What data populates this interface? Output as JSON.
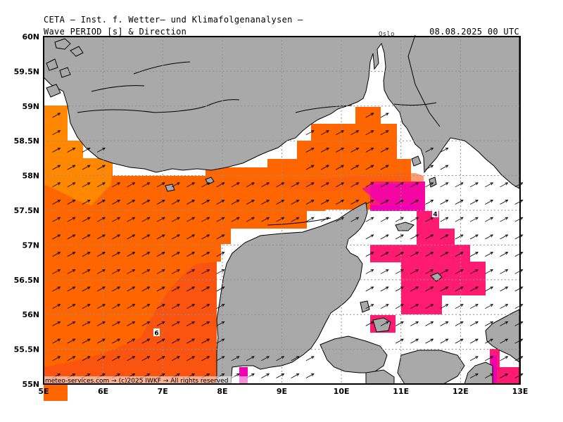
{
  "header": {
    "institute": "CETA – Inst. f. Wetter– und Klimafolgenanalysen –",
    "variable": "Wave PERIOD [s] & Direction",
    "datetime": "08.08.2025 00 UTC",
    "city_label": "Oslo"
  },
  "credit": "meteo-services.com → (c)2025 IWKF → All rights reserved",
  "axes": {
    "x_labels": [
      "5E",
      "6E",
      "7E",
      "8E",
      "9E",
      "10E",
      "11E",
      "12E",
      "13E"
    ],
    "y_labels": [
      "60N",
      "59.5N",
      "59N",
      "58.5N",
      "58N",
      "57.5N",
      "57N",
      "56.5N",
      "56N",
      "55.5N",
      "55N"
    ]
  },
  "map_data": {
    "type": "filled-contour-map",
    "lon_range": [
      5,
      13
    ],
    "lat_range": [
      55,
      60
    ],
    "period_labels": [
      {
        "text": "6",
        "lon": 6.92,
        "lat": 55.79
      },
      {
        "text": "4",
        "lon": 11.58,
        "lat": 57.45
      }
    ],
    "colors": {
      "land": "#a9a9a9",
      "sea_low": "#ffffff",
      "period_6": "#ff6600",
      "period_6_light": "#ff8800",
      "period_6_dark": "#fb5310",
      "period_4": "#ff1a72",
      "period_3": "#f000b4",
      "grid": "#909090"
    }
  }
}
